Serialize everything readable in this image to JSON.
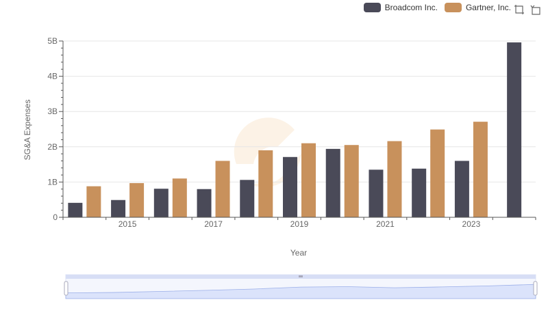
{
  "chart_data": {
    "type": "bar",
    "x": [
      2014,
      2015,
      2016,
      2017,
      2018,
      2019,
      2020,
      2021,
      2022,
      2023,
      2024
    ],
    "x_tick_labels": [
      "2015",
      "2017",
      "2019",
      "2021",
      "2023"
    ],
    "series": [
      {
        "name": "Broadcom Inc.",
        "color": "#4a4a58",
        "values": [
          0.41,
          0.49,
          0.81,
          0.8,
          1.06,
          1.71,
          1.94,
          1.35,
          1.38,
          1.6,
          4.96
        ]
      },
      {
        "name": "Gartner, Inc.",
        "color": "#c8915c",
        "values": [
          0.88,
          0.97,
          1.1,
          1.6,
          1.9,
          2.1,
          2.05,
          2.16,
          2.49,
          2.71,
          null
        ]
      }
    ],
    "xlabel": "Year",
    "ylabel": "SG&A Expenses",
    "ylim": [
      0,
      5
    ],
    "y_tick_labels": [
      "0",
      "1B",
      "2B",
      "3B",
      "4B",
      "5B"
    ],
    "grid": true,
    "legend_position": "top-right",
    "datazoom": true
  },
  "icons": {
    "zoom": "zoom-icon",
    "reset": "restore-icon"
  }
}
